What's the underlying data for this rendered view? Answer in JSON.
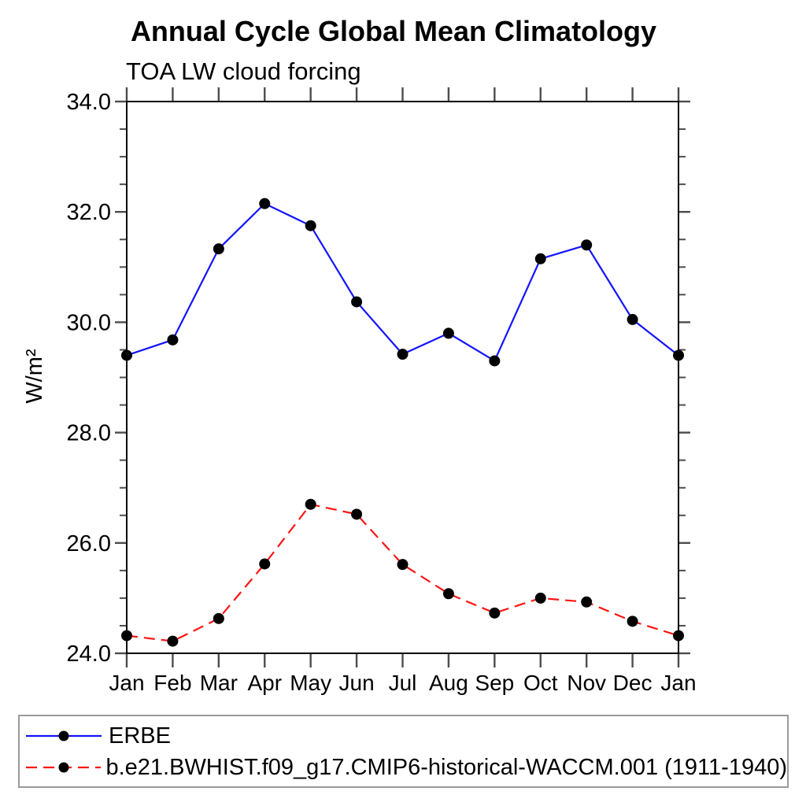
{
  "title": "Annual Cycle Global Mean Climatology",
  "subtitle": "TOA LW cloud forcing",
  "ylabel": "W/m²",
  "chart_data": {
    "type": "line",
    "categories": [
      "Jan",
      "Feb",
      "Mar",
      "Apr",
      "May",
      "Jun",
      "Jul",
      "Aug",
      "Sep",
      "Oct",
      "Nov",
      "Dec",
      "Jan"
    ],
    "series": [
      {
        "name": "ERBE",
        "color": "#1414ff",
        "line_style": "solid",
        "marker": "filled-circle",
        "marker_color": "#000000",
        "values": [
          29.4,
          29.68,
          31.33,
          32.15,
          31.75,
          30.37,
          29.42,
          29.8,
          29.3,
          31.15,
          31.4,
          30.05,
          29.4
        ]
      },
      {
        "name": "b.e21.BWHIST.f09_g17.CMIP6-historical-WACCM.001 (1911-1940)",
        "color": "#ff1414",
        "line_style": "dashed",
        "marker": "filled-circle",
        "marker_color": "#000000",
        "values": [
          24.32,
          24.22,
          24.63,
          25.62,
          26.7,
          26.52,
          25.61,
          25.08,
          24.73,
          25.0,
          24.93,
          24.58,
          24.32
        ]
      }
    ],
    "xlabel": "",
    "ylabel": "W/m²",
    "ylim": [
      24.0,
      34.0
    ],
    "ytick_major": [
      24.0,
      26.0,
      28.0,
      30.0,
      32.0,
      34.0
    ],
    "ytick_labels": [
      "24.0",
      "26.0",
      "28.0",
      "30.0",
      "32.0",
      "34.0"
    ],
    "ytick_minor_step": 0.5,
    "grid": false,
    "legend_position": "bottom"
  }
}
